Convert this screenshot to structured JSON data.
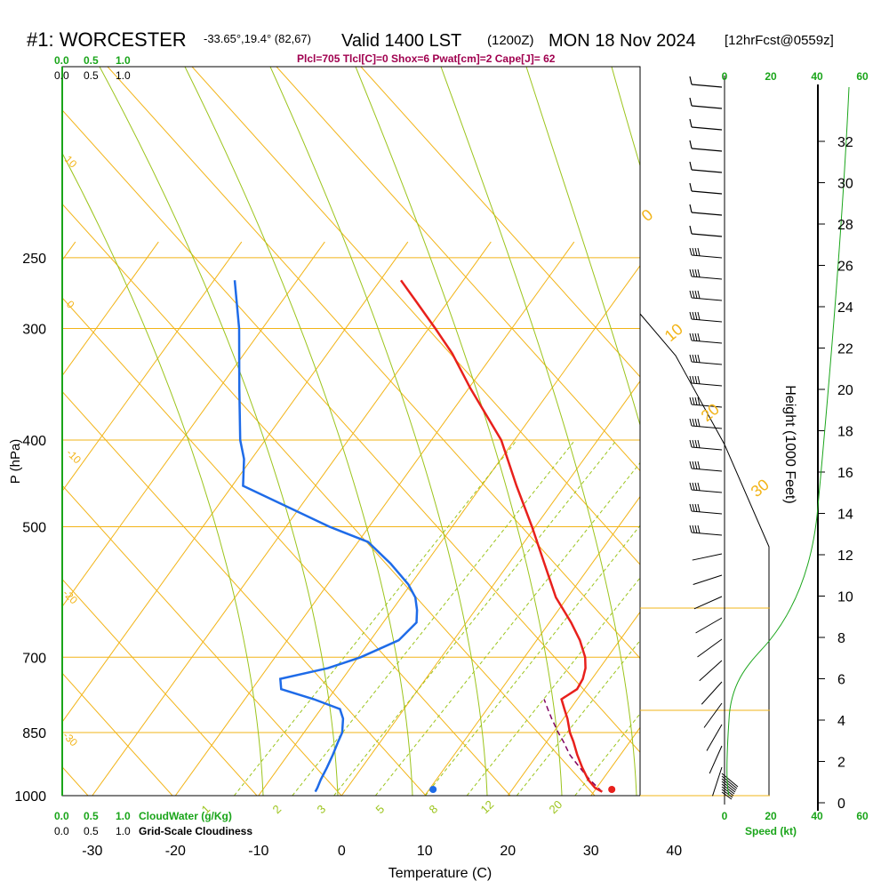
{
  "header": {
    "station": "#1: WORCESTER",
    "coords": "-33.65°,19.4° (82,67)",
    "valid": "Valid 1400 LST",
    "zulu": "(1200Z)",
    "date": "MON 18 Nov 2024",
    "forecast": "[12hrFcst@0559z]",
    "indices": "Plcl=705 Tlcl[C]=0 Shox=6 Pwat[cm]=2 Cape[J]= 62"
  },
  "colors": {
    "isobar": "#f2b418",
    "dry_adiabat": "#f2b418",
    "moist_adiabat": "#9cc41c",
    "mixing_ratio": "#9cc41c",
    "temperature": "#e8201c",
    "dewpoint": "#1e6be8",
    "parcel": "#800060",
    "cloud_axis": "#1aa51a",
    "indices_text": "#a0004f",
    "height_line": "#1aa51a"
  },
  "chart_data": {
    "type": "line",
    "title": "#1: WORCESTER",
    "xlabel": "Temperature (C)",
    "ylabel": "P (hPa)",
    "xlim": [
      -33,
      36
    ],
    "ylim": [
      1010,
      250
    ],
    "x_ticks": [
      "-30",
      "-20",
      "-10",
      "0",
      "10",
      "20",
      "30",
      "40"
    ],
    "y_ticks": [
      "250",
      "300",
      "400",
      "500",
      "700",
      "850",
      "1000"
    ],
    "isotherm_labels": [
      "-10",
      "0",
      "10",
      "20",
      "30"
    ],
    "dry_adiabat_labels": [
      "10",
      "0",
      "-10",
      "-20",
      "-30"
    ],
    "mixing_ratio_labels": [
      "1",
      "2",
      "3",
      "5",
      "8",
      "12",
      "20"
    ],
    "series": [
      {
        "name": "Temperature",
        "p": [
          990,
          980,
          960,
          930,
          900,
          870,
          850,
          820,
          800,
          780,
          760,
          740,
          720,
          700,
          670,
          640,
          600,
          550,
          500,
          450,
          400,
          350,
          320,
          300,
          280,
          265
        ],
        "t": [
          31,
          29.8,
          28.3,
          26.5,
          24.8,
          23.2,
          22,
          20.5,
          19.3,
          18.1,
          19.1,
          18.9,
          18.3,
          17.3,
          15.2,
          12.6,
          8.6,
          4.3,
          -0.4,
          -5.8,
          -11.6,
          -19.8,
          -25,
          -29.2,
          -33.8,
          -37.5
        ]
      },
      {
        "name": "Dewpoint",
        "p": [
          990,
          980,
          960,
          930,
          900,
          870,
          850,
          820,
          800,
          780,
          760,
          740,
          720,
          700,
          670,
          640,
          620,
          600,
          580,
          550,
          520,
          500,
          450,
          420,
          400,
          350,
          300,
          265
        ],
        "t": [
          -3.5,
          -3.6,
          -3.9,
          -4.2,
          -4.6,
          -5.1,
          -5.4,
          -6.5,
          -7.7,
          -11.7,
          -16.5,
          -17.5,
          -12.7,
          -9.7,
          -6.6,
          -6,
          -7,
          -8.3,
          -10.3,
          -14.2,
          -18.8,
          -24.8,
          -38.7,
          -40.9,
          -43,
          -47.6,
          -52.8,
          -57.5
        ]
      },
      {
        "name": "Parcel",
        "p": [
          990,
          960,
          930,
          900,
          870,
          850,
          820,
          800,
          780
        ],
        "t": [
          31,
          28.5,
          26.2,
          23.9,
          22,
          20.6,
          18.6,
          17.3,
          16
        ]
      }
    ],
    "surface_temperature": 32.5,
    "surface_dewpoint": 11,
    "wind_kt": 12,
    "cloud_water_ticks": [
      "0.0",
      "0.5",
      "1.0"
    ],
    "cloudiness_ticks": [
      "0.0",
      "0.5",
      "1.0"
    ],
    "speed_ticks": [
      "0",
      "20",
      "40",
      "60"
    ],
    "height_ticks": [
      "0",
      "2",
      "4",
      "6",
      "8",
      "10",
      "12",
      "14",
      "16",
      "18",
      "20",
      "22",
      "24",
      "26",
      "28",
      "30",
      "32"
    ],
    "height_label": "Height (1000 Feet)",
    "cloud_water_label": "CloudWater (g/Kg)",
    "cloudiness_label": "Grid-Scale Cloudiness",
    "speed_label": "Speed (kt)"
  }
}
